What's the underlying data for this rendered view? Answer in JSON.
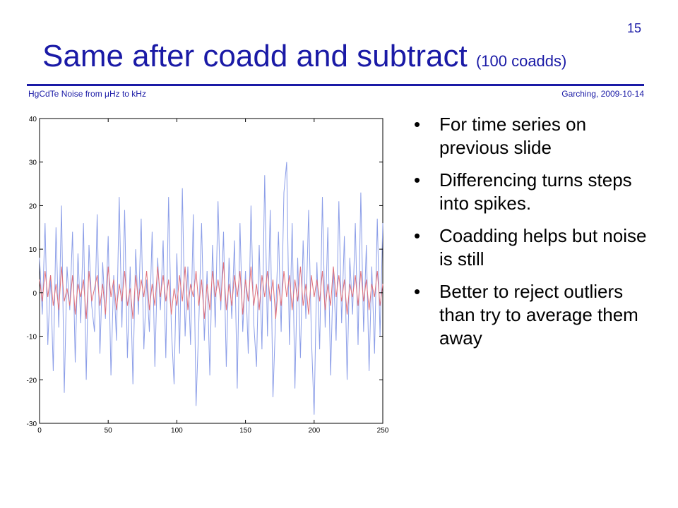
{
  "slide": {
    "number": "15",
    "title": "Same after coadd and subtract",
    "title_suffix": "(100 coadds)",
    "footer_left": "HgCdTe Noise from μHz to kHz",
    "footer_right": "Garching, 2009-10-14",
    "accent_color": "#1a1aa6"
  },
  "bullets": [
    "For time series on previous slide",
    "Differencing turns steps into spikes.",
    "Coadding helps but noise is still",
    "Better to reject outliers than try to average them away"
  ],
  "chart_data": {
    "type": "line",
    "title": "",
    "xlabel": "",
    "ylabel": "",
    "xlim": [
      0,
      250
    ],
    "ylim": [
      -30,
      40
    ],
    "xticks": [
      0,
      50,
      100,
      150,
      200,
      250
    ],
    "yticks": [
      -30,
      -20,
      -10,
      0,
      10,
      20,
      30,
      40
    ],
    "grid": false,
    "series": [
      {
        "color": "#8c9ee8",
        "x": [
          0,
          2,
          4,
          6,
          8,
          10,
          12,
          14,
          16,
          18,
          20,
          22,
          24,
          26,
          28,
          30,
          32,
          34,
          36,
          38,
          40,
          42,
          44,
          46,
          48,
          50,
          52,
          54,
          56,
          58,
          60,
          62,
          64,
          66,
          68,
          70,
          72,
          74,
          76,
          78,
          80,
          82,
          84,
          86,
          88,
          90,
          92,
          94,
          96,
          98,
          100,
          102,
          104,
          106,
          108,
          110,
          112,
          114,
          116,
          118,
          120,
          122,
          124,
          126,
          128,
          130,
          132,
          134,
          136,
          138,
          140,
          142,
          144,
          146,
          148,
          150,
          152,
          154,
          156,
          158,
          160,
          162,
          164,
          166,
          168,
          170,
          172,
          174,
          176,
          178,
          180,
          182,
          184,
          186,
          188,
          190,
          192,
          194,
          196,
          198,
          200,
          202,
          204,
          206,
          208,
          210,
          212,
          214,
          216,
          218,
          220,
          222,
          224,
          226,
          228,
          230,
          232,
          234,
          236,
          238,
          240,
          242,
          244,
          246,
          248,
          250
        ],
        "y": [
          8,
          -5,
          16,
          -12,
          4,
          -18,
          15,
          -8,
          20,
          -23,
          6,
          -4,
          14,
          -16,
          9,
          -7,
          16,
          -20,
          11,
          -3,
          -9,
          18,
          -14,
          7,
          -6,
          13,
          -19,
          4,
          -11,
          22,
          -8,
          19,
          -15,
          6,
          -21,
          10,
          -5,
          17,
          -13,
          3,
          -9,
          14,
          -17,
          8,
          -4,
          12,
          -15,
          22,
          -8,
          -21,
          9,
          -14,
          24,
          -10,
          6,
          -12,
          18,
          -26,
          -7,
          16,
          -11,
          5,
          -19,
          11,
          -8,
          21,
          -4,
          14,
          -17,
          8,
          -6,
          12,
          -22,
          16,
          -9,
          5,
          -14,
          20,
          -7,
          -17,
          11,
          -13,
          27,
          -10,
          19,
          -24,
          -5,
          14,
          -9,
          23,
          30,
          -12,
          16,
          -22,
          8,
          -15,
          12,
          -6,
          19,
          -10,
          -28,
          7,
          -13,
          22,
          -8,
          15,
          -19,
          6,
          -11,
          21,
          -7,
          13,
          -20,
          8,
          -5,
          16,
          -12,
          23,
          -9,
          11,
          -18,
          6,
          -14,
          17,
          -10,
          16
        ]
      },
      {
        "color": "#e0707a",
        "x": [
          0,
          2,
          4,
          6,
          8,
          10,
          12,
          14,
          16,
          18,
          20,
          22,
          24,
          26,
          28,
          30,
          32,
          34,
          36,
          38,
          40,
          42,
          44,
          46,
          48,
          50,
          52,
          54,
          56,
          58,
          60,
          62,
          64,
          66,
          68,
          70,
          72,
          74,
          76,
          78,
          80,
          82,
          84,
          86,
          88,
          90,
          92,
          94,
          96,
          98,
          100,
          102,
          104,
          106,
          108,
          110,
          112,
          114,
          116,
          118,
          120,
          122,
          124,
          126,
          128,
          130,
          132,
          134,
          136,
          138,
          140,
          142,
          144,
          146,
          148,
          150,
          152,
          154,
          156,
          158,
          160,
          162,
          164,
          166,
          168,
          170,
          172,
          174,
          176,
          178,
          180,
          182,
          184,
          186,
          188,
          190,
          192,
          194,
          196,
          198,
          200,
          202,
          204,
          206,
          208,
          210,
          212,
          214,
          216,
          218,
          220,
          222,
          224,
          226,
          228,
          230,
          232,
          234,
          236,
          238,
          240,
          242,
          244,
          246,
          248,
          250
        ],
        "y": [
          3,
          -2,
          5,
          -1,
          4,
          -3,
          2,
          -4,
          6,
          -2,
          1,
          -3,
          4,
          -5,
          2,
          -1,
          3,
          -6,
          5,
          -2,
          1,
          4,
          -3,
          2,
          -5,
          6,
          -1,
          3,
          -4,
          2,
          -2,
          5,
          -3,
          1,
          -6,
          4,
          -2,
          3,
          -1,
          5,
          -4,
          2,
          -3,
          6,
          -1,
          4,
          -2,
          3,
          -5,
          1,
          -3,
          4,
          -2,
          6,
          -4,
          2,
          -1,
          5,
          -3,
          3,
          -6,
          2,
          -4,
          5,
          -1,
          3,
          -2,
          7,
          -4,
          2,
          -3,
          4,
          -1,
          5,
          -5,
          3,
          -2,
          6,
          -3,
          2,
          -4,
          4,
          -1,
          5,
          -2,
          3,
          -6,
          2,
          -3,
          5,
          -1,
          4,
          -4,
          3,
          -2,
          6,
          -3,
          2,
          -5,
          4,
          -1,
          3,
          -2,
          5,
          -4,
          2,
          -3,
          6,
          -1,
          4,
          -2,
          3,
          -5,
          2,
          -1,
          4,
          -3,
          5,
          -2,
          3,
          -4,
          2,
          -1,
          5,
          -3,
          2
        ]
      }
    ]
  }
}
